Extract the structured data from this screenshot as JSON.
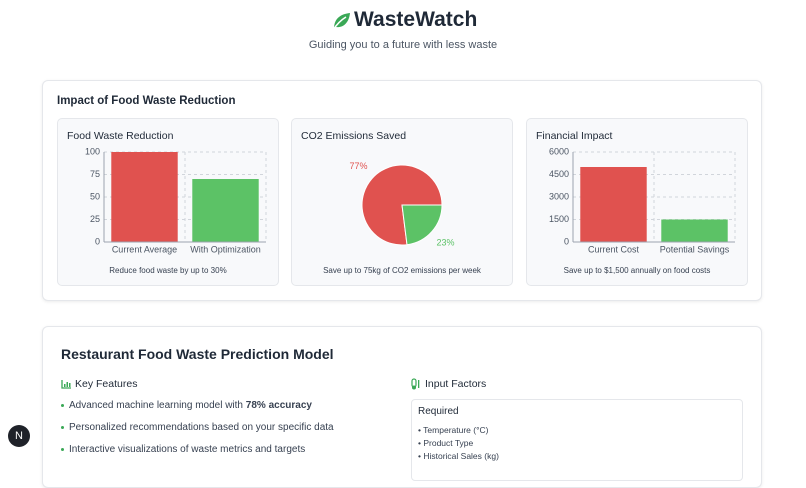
{
  "header": {
    "title": "WasteWatch",
    "subtitle": "Guiding you to a future with less waste"
  },
  "impact": {
    "title": "Impact of Food Waste Reduction"
  },
  "chart_data": [
    {
      "type": "bar",
      "title": "Food Waste Reduction",
      "categories": [
        "Current Average",
        "With Optimization"
      ],
      "values": [
        100,
        70
      ],
      "colors": [
        "#e0524f",
        "#5cc266"
      ],
      "ylim": [
        0,
        100
      ],
      "yticks": [
        0,
        25,
        50,
        75,
        100
      ],
      "grid": true,
      "caption": "Reduce food waste by up to 30%"
    },
    {
      "type": "pie",
      "title": "CO2 Emissions Saved",
      "values": [
        77,
        23
      ],
      "value_labels": [
        "77%",
        "23%"
      ],
      "colors": [
        "#e0524f",
        "#5cc266"
      ],
      "caption": "Save up to 75kg of CO2 emissions per week"
    },
    {
      "type": "bar",
      "title": "Financial Impact",
      "categories": [
        "Current Cost",
        "Potential Savings"
      ],
      "values": [
        5000,
        1500
      ],
      "colors": [
        "#e0524f",
        "#5cc266"
      ],
      "ylim": [
        0,
        6000
      ],
      "yticks": [
        0,
        1500,
        3000,
        4500,
        6000
      ],
      "grid": true,
      "caption": "Save up to $1,500 annually on food costs"
    }
  ],
  "model": {
    "title": "Restaurant Food Waste Prediction Model",
    "key_features": {
      "title": "Key Features",
      "items": [
        {
          "text": "Advanced machine learning model with",
          "bold": "78% accuracy"
        },
        {
          "text": "Personalized recommendations based on your specific data"
        },
        {
          "text": "Interactive visualizations of waste metrics and targets"
        }
      ]
    },
    "input_factors": {
      "title": "Input Factors",
      "required": {
        "title": "Required",
        "items": [
          "• Temperature (°C)",
          "• Product Type",
          "• Historical Sales (kg)"
        ]
      }
    }
  },
  "launcher": "N"
}
